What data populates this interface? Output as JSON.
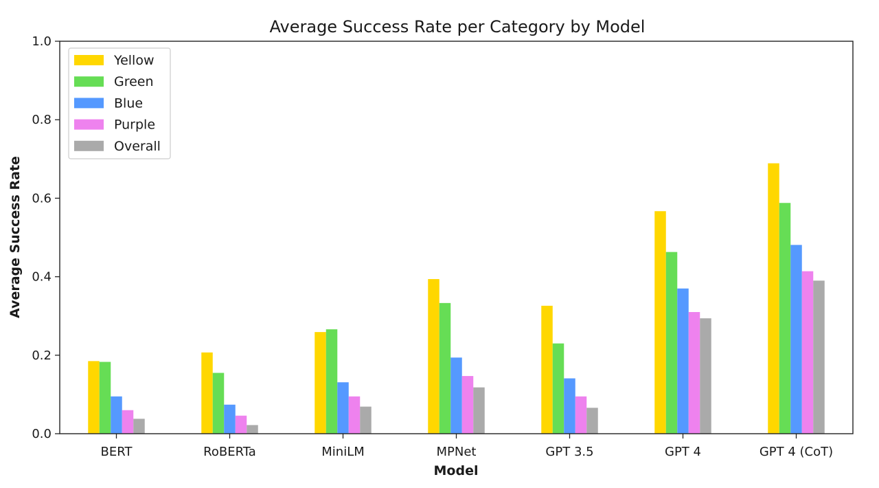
{
  "chart_data": {
    "type": "bar",
    "title": "Average Success Rate per Category by Model",
    "xlabel": "Model",
    "ylabel": "Average Success Rate",
    "ylim": [
      0,
      1.0
    ],
    "yticks": [
      "0.0",
      "0.2",
      "0.4",
      "0.6",
      "0.8",
      "1.0"
    ],
    "grid": false,
    "legend_position": "top-left",
    "categories": [
      "BERT",
      "RoBERTa",
      "MiniLM",
      "MPNet",
      "GPT 3.5",
      "GPT 4",
      "GPT 4 (CoT)"
    ],
    "series": [
      {
        "name": "Yellow",
        "color": "#FFD700",
        "values": [
          0.185,
          0.207,
          0.259,
          0.394,
          0.326,
          0.567,
          0.689
        ]
      },
      {
        "name": "Green",
        "color": "#66DD55",
        "values": [
          0.183,
          0.155,
          0.266,
          0.333,
          0.23,
          0.463,
          0.588
        ]
      },
      {
        "name": "Blue",
        "color": "#5599FF",
        "values": [
          0.095,
          0.074,
          0.131,
          0.194,
          0.141,
          0.37,
          0.481
        ]
      },
      {
        "name": "Purple",
        "color": "#EE82EE",
        "values": [
          0.06,
          0.046,
          0.095,
          0.147,
          0.095,
          0.31,
          0.414
        ]
      },
      {
        "name": "Overall",
        "color": "#AAAAAA",
        "values": [
          0.038,
          0.022,
          0.069,
          0.118,
          0.066,
          0.294,
          0.39
        ]
      }
    ]
  }
}
